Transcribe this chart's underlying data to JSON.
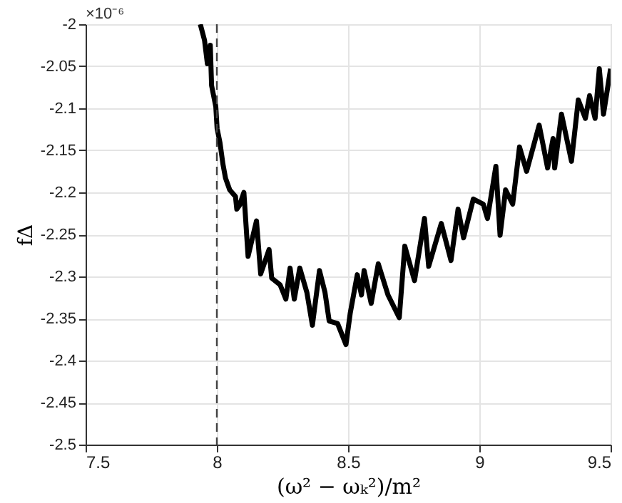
{
  "chart_data": {
    "type": "line",
    "xlabel": "(ω² − ωₖ²)/m²",
    "ylabel": "fΔ",
    "annotations": [
      "×10⁻⁶"
    ],
    "xlim": [
      7.5,
      9.5
    ],
    "ylim": [
      -2.5,
      -2
    ],
    "xticks": [
      7.5,
      8,
      8.5,
      9,
      9.5
    ],
    "yticks": [
      -2.5,
      -2.45,
      -2.4,
      -2.35,
      -2.3,
      -2.25,
      -2.2,
      -2.15,
      -2.1,
      -2.05,
      -2
    ],
    "grid": true,
    "line_style": "solid",
    "x": [
      7.937,
      7.953,
      7.964,
      7.975,
      7.98,
      7.996,
      8.001,
      8.012,
      8.023,
      8.033,
      8.049,
      8.071,
      8.076,
      8.087,
      8.103,
      8.119,
      8.151,
      8.167,
      8.199,
      8.209,
      8.241,
      8.263,
      8.279,
      8.295,
      8.316,
      8.343,
      8.364,
      8.391,
      8.412,
      8.428,
      8.46,
      8.492,
      8.508,
      8.535,
      8.551,
      8.561,
      8.588,
      8.615,
      8.652,
      8.695,
      8.716,
      8.753,
      8.791,
      8.807,
      8.855,
      8.892,
      8.919,
      8.94,
      8.977,
      9.015,
      9.031,
      9.063,
      9.079,
      9.1,
      9.127,
      9.153,
      9.18,
      9.228,
      9.26,
      9.281,
      9.287,
      9.313,
      9.351,
      9.377,
      9.404,
      9.42,
      9.441,
      9.457,
      9.473,
      9.5
    ],
    "series": [
      {
        "color": "#000000",
        "values": [
          -2.0,
          -2.019,
          -2.047,
          -2.025,
          -2.073,
          -2.098,
          -2.124,
          -2.141,
          -2.166,
          -2.183,
          -2.197,
          -2.205,
          -2.22,
          -2.215,
          -2.2,
          -2.276,
          -2.234,
          -2.297,
          -2.268,
          -2.302,
          -2.31,
          -2.327,
          -2.29,
          -2.327,
          -2.29,
          -2.319,
          -2.358,
          -2.293,
          -2.319,
          -2.353,
          -2.356,
          -2.381,
          -2.344,
          -2.298,
          -2.322,
          -2.293,
          -2.332,
          -2.285,
          -2.322,
          -2.349,
          -2.264,
          -2.305,
          -2.231,
          -2.288,
          -2.237,
          -2.281,
          -2.22,
          -2.254,
          -2.208,
          -2.214,
          -2.231,
          -2.169,
          -2.251,
          -2.197,
          -2.214,
          -2.146,
          -2.175,
          -2.12,
          -2.171,
          -2.136,
          -2.171,
          -2.107,
          -2.163,
          -2.09,
          -2.112,
          -2.085,
          -2.112,
          -2.053,
          -2.107,
          -2.053
        ]
      }
    ],
    "ref_lines": [
      {
        "axis": "x",
        "value": 8,
        "color": "#444444",
        "line_style": "dashed"
      }
    ]
  }
}
